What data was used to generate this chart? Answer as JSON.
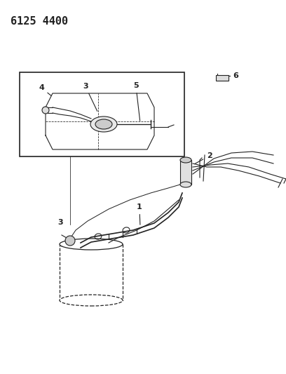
{
  "title": "6125 4400",
  "bg_color": "#ffffff",
  "line_color": "#222222",
  "title_fontsize": 11,
  "label_fontsize": 8,
  "fig_width": 4.08,
  "fig_height": 5.33,
  "dpi": 100
}
